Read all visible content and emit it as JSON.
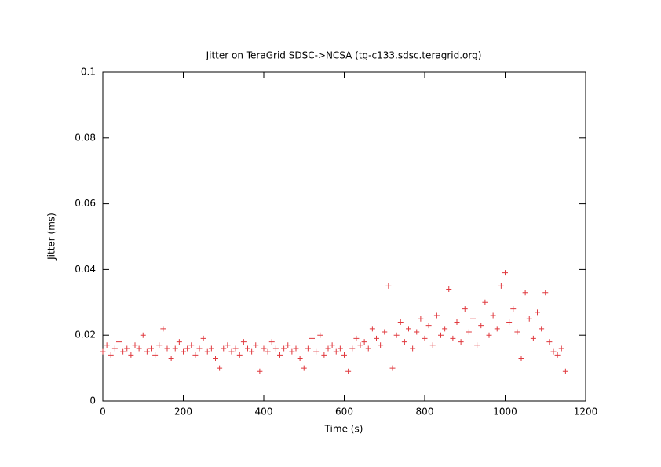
{
  "chart_data": {
    "type": "scatter",
    "title": "Jitter on TeraGrid SDSC->NCSA (tg-c133.sdsc.teragrid.org)",
    "x_label": "Time (s)",
    "y_label": "Jitter (ms)",
    "color": "#e0393e",
    "xlim": [
      0,
      1200
    ],
    "xticks": [
      0,
      200,
      400,
      600,
      800,
      1000,
      1200
    ],
    "ylim": [
      0,
      0.1
    ],
    "yticks": [
      0,
      0.02,
      0.04,
      0.06,
      0.08,
      0.1
    ],
    "x": [
      0,
      10,
      20,
      30,
      40,
      50,
      60,
      70,
      80,
      90,
      100,
      110,
      120,
      130,
      140,
      150,
      160,
      170,
      180,
      190,
      200,
      210,
      220,
      230,
      240,
      250,
      260,
      270,
      280,
      290,
      300,
      310,
      320,
      330,
      340,
      350,
      360,
      370,
      380,
      390,
      400,
      410,
      420,
      430,
      440,
      450,
      460,
      470,
      480,
      490,
      500,
      510,
      520,
      530,
      540,
      550,
      560,
      570,
      580,
      590,
      600,
      610,
      620,
      630,
      640,
      650,
      660,
      670,
      680,
      690,
      700,
      710,
      720,
      730,
      740,
      750,
      760,
      770,
      780,
      790,
      800,
      810,
      820,
      830,
      840,
      850,
      860,
      870,
      880,
      890,
      900,
      910,
      920,
      930,
      940,
      950,
      960,
      970,
      980,
      990,
      1000,
      1010,
      1020,
      1030,
      1040,
      1050,
      1060,
      1070,
      1080,
      1090,
      1100,
      1110,
      1120,
      1130,
      1140,
      1150
    ],
    "values": [
      0.015,
      0.017,
      0.014,
      0.016,
      0.018,
      0.015,
      0.016,
      0.014,
      0.017,
      0.016,
      0.02,
      0.015,
      0.016,
      0.014,
      0.017,
      0.022,
      0.016,
      0.013,
      0.016,
      0.018,
      0.015,
      0.016,
      0.017,
      0.014,
      0.016,
      0.019,
      0.015,
      0.016,
      0.013,
      0.01,
      0.016,
      0.017,
      0.015,
      0.016,
      0.014,
      0.018,
      0.016,
      0.015,
      0.017,
      0.009,
      0.016,
      0.015,
      0.018,
      0.016,
      0.014,
      0.016,
      0.017,
      0.015,
      0.016,
      0.013,
      0.01,
      0.016,
      0.019,
      0.015,
      0.02,
      0.014,
      0.016,
      0.017,
      0.015,
      0.016,
      0.014,
      0.009,
      0.016,
      0.019,
      0.017,
      0.018,
      0.016,
      0.022,
      0.019,
      0.017,
      0.021,
      0.035,
      0.01,
      0.02,
      0.024,
      0.018,
      0.022,
      0.016,
      0.021,
      0.025,
      0.019,
      0.023,
      0.017,
      0.026,
      0.02,
      0.022,
      0.034,
      0.019,
      0.024,
      0.018,
      0.028,
      0.021,
      0.025,
      0.017,
      0.023,
      0.03,
      0.02,
      0.026,
      0.022,
      0.035,
      0.039,
      0.024,
      0.028,
      0.021,
      0.013,
      0.033,
      0.025,
      0.019,
      0.027,
      0.022,
      0.033,
      0.018,
      0.015,
      0.014,
      0.016,
      0.009
    ]
  }
}
